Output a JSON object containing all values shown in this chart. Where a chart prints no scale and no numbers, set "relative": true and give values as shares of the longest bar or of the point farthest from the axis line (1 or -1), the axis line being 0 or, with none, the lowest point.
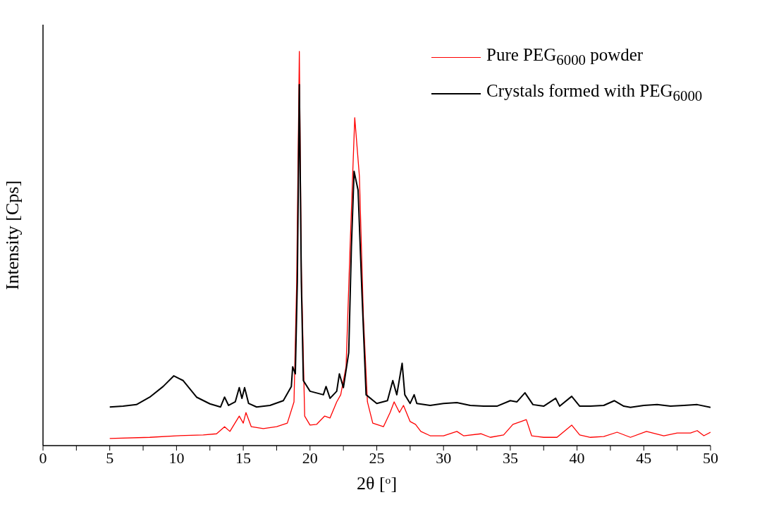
{
  "chart_data": {
    "type": "line",
    "xlabel": "2θ [$^{o}$]",
    "ylabel": "Intensity [Cps]",
    "relative": true,
    "xlim": [
      0,
      50
    ],
    "xticks": [
      0,
      {
        "value": 2.5,
        "label": null
      },
      5,
      {
        "value": 7.5,
        "label": null
      },
      10,
      {
        "value": 12.5,
        "label": null
      },
      15,
      {
        "value": 17.5,
        "label": null
      },
      20,
      {
        "value": 22.5,
        "label": null
      },
      25,
      {
        "value": 27.5,
        "label": null
      },
      30,
      {
        "value": 32.5,
        "label": null
      },
      35,
      {
        "value": 37.5,
        "label": null
      },
      40,
      {
        "value": 42.5,
        "label": null
      },
      45,
      {
        "value": 47.5,
        "label": null
      },
      50
    ],
    "legend": "top right",
    "marker": "none",
    "line_style": "solid",
    "series": [
      {
        "name": "Pure PEG$_{6000}$ powder",
        "color": "#ff0000",
        "x": [
          5,
          8,
          10,
          12,
          13,
          13.6,
          14,
          14.7,
          15,
          15.2,
          15.6,
          16.5,
          17.5,
          18.3,
          18.8,
          19.0,
          19.2,
          19.35,
          19.6,
          20,
          20.5,
          21.1,
          21.5,
          22,
          22.3,
          22.7,
          23.0,
          23.35,
          23.7,
          24.0,
          24.3,
          24.7,
          25.5,
          26,
          26.3,
          26.7,
          27.0,
          27.5,
          27.9,
          28.3,
          29,
          30,
          31,
          31.5,
          32.8,
          33.5,
          34.5,
          35.2,
          35.8,
          36.2,
          36.6,
          37.5,
          38.5,
          39.6,
          40.2,
          41,
          42,
          43,
          44,
          45.2,
          46.5,
          47.5,
          48.5,
          49,
          49.5,
          50
        ],
        "values": [
          0.018,
          0.021,
          0.025,
          0.027,
          0.03,
          0.048,
          0.036,
          0.075,
          0.057,
          0.084,
          0.048,
          0.043,
          0.048,
          0.057,
          0.111,
          0.415,
          1,
          0.451,
          0.075,
          0.052,
          0.054,
          0.075,
          0.07,
          0.111,
          0.129,
          0.2,
          0.504,
          0.832,
          0.683,
          0.326,
          0.111,
          0.057,
          0.048,
          0.084,
          0.111,
          0.084,
          0.102,
          0.061,
          0.054,
          0.036,
          0.025,
          0.025,
          0.036,
          0.025,
          0.03,
          0.021,
          0.027,
          0.054,
          0.061,
          0.066,
          0.025,
          0.021,
          0.021,
          0.052,
          0.027,
          0.021,
          0.023,
          0.034,
          0.021,
          0.036,
          0.025,
          0.032,
          0.032,
          0.038,
          0.025,
          0.034
        ]
      },
      {
        "name": "Crystals formed with PEG$_{6000}$",
        "color": "#000000",
        "x": [
          5,
          6,
          7,
          8,
          9,
          9.8,
          10.5,
          11.5,
          12.5,
          13.3,
          13.6,
          13.9,
          14.4,
          14.7,
          14.9,
          15.1,
          15.4,
          16,
          17,
          18,
          18.6,
          18.7,
          18.9,
          19.05,
          19.2,
          19.35,
          19.5,
          20,
          21,
          21.2,
          21.5,
          22,
          22.2,
          22.5,
          22.9,
          23.1,
          23.3,
          23.6,
          23.9,
          24.2,
          25,
          25.8,
          26.2,
          26.5,
          26.9,
          27.1,
          27.5,
          27.8,
          28,
          29,
          30,
          31,
          32,
          33,
          34,
          35,
          35.5,
          36.1,
          36.7,
          37.5,
          38.4,
          38.7,
          39.6,
          40.2,
          41,
          42,
          42.8,
          43.5,
          44,
          45,
          46,
          47,
          48,
          49,
          50
        ],
        "values": [
          0.098,
          0.1,
          0.104,
          0.123,
          0.15,
          0.177,
          0.165,
          0.123,
          0.106,
          0.098,
          0.123,
          0.102,
          0.111,
          0.147,
          0.12,
          0.147,
          0.107,
          0.098,
          0.102,
          0.114,
          0.15,
          0.2,
          0.182,
          0.415,
          0.916,
          0.415,
          0.165,
          0.138,
          0.129,
          0.15,
          0.12,
          0.138,
          0.182,
          0.147,
          0.236,
          0.504,
          0.696,
          0.648,
          0.379,
          0.129,
          0.107,
          0.114,
          0.165,
          0.129,
          0.209,
          0.129,
          0.107,
          0.129,
          0.107,
          0.102,
          0.107,
          0.109,
          0.102,
          0.1,
          0.1,
          0.114,
          0.111,
          0.134,
          0.104,
          0.1,
          0.12,
          0.1,
          0.125,
          0.1,
          0.1,
          0.102,
          0.114,
          0.1,
          0.097,
          0.102,
          0.104,
          0.1,
          0.102,
          0.104,
          0.097
        ]
      }
    ]
  }
}
